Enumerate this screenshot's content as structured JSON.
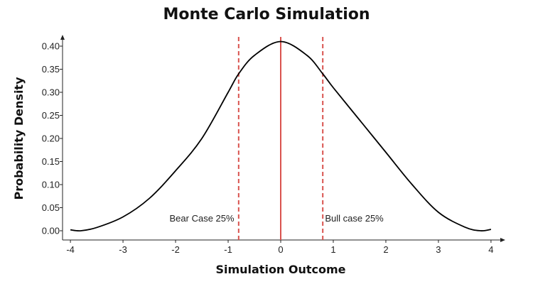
{
  "chart_data": {
    "type": "line",
    "title": "Monte Carlo Simulation",
    "xlabel": "Simulation Outcome",
    "ylabel": "Probability Density",
    "xlim": [
      -4.15,
      4.15
    ],
    "ylim": [
      -0.02,
      0.42
    ],
    "x_ticks": [
      -4,
      -3,
      -2,
      -1,
      0,
      1,
      2,
      3,
      4
    ],
    "x_tick_labels": [
      "-4",
      "-3",
      "-2",
      "-1",
      "0",
      "1",
      "2",
      "3",
      "4"
    ],
    "y_ticks": [
      0.0,
      0.05,
      0.1,
      0.15,
      0.2,
      0.25,
      0.3,
      0.35,
      0.4
    ],
    "y_tick_labels": [
      "0.00",
      "0.05",
      "0.10",
      "0.15",
      "0.20",
      "0.25",
      "0.30",
      "0.35",
      "0.40"
    ],
    "grid": false,
    "series": [
      {
        "x": [
          -4.0,
          -3.8,
          -3.5,
          -3.0,
          -2.5,
          -2.0,
          -1.5,
          -1.0,
          -0.8,
          -0.5,
          0.0,
          0.5,
          0.8,
          1.0,
          1.5,
          2.0,
          2.5,
          3.0,
          3.5,
          3.8,
          4.0
        ],
        "y": [
          0.002,
          0.0,
          0.007,
          0.03,
          0.07,
          0.13,
          0.2,
          0.3,
          0.34,
          0.38,
          0.41,
          0.38,
          0.34,
          0.31,
          0.24,
          0.17,
          0.1,
          0.04,
          0.008,
          0.0,
          0.003
        ],
        "color": "#000000"
      }
    ],
    "vertical_lines": [
      {
        "x": -0.8,
        "style": "dashed",
        "color": "#d9534f"
      },
      {
        "x": 0.0,
        "style": "solid",
        "color": "#d9534f"
      },
      {
        "x": 0.8,
        "style": "dashed",
        "color": "#d9534f"
      }
    ],
    "annotations": [
      {
        "text": "Bear Case 25%",
        "x": -1.5,
        "y": 0.02
      },
      {
        "text": "Bull case 25%",
        "x": 1.4,
        "y": 0.02
      }
    ]
  }
}
